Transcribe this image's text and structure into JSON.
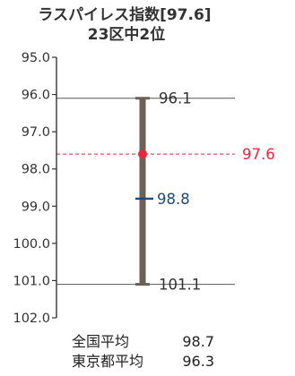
{
  "chart_data": {
    "type": "range",
    "title_line1": "ラスパイレス指数[97.6]",
    "title_line2": "23区中2位",
    "y_axis": {
      "min": 95.0,
      "max": 102.0,
      "inverted": true,
      "ticks": [
        "95.0",
        "96.0",
        "97.0",
        "98.0",
        "99.0",
        "100.0",
        "101.0",
        "102.0"
      ]
    },
    "range": {
      "max_value": 96.1,
      "max_label": "96.1",
      "min_value": 101.1,
      "min_label": "101.1"
    },
    "value": {
      "value": 97.6,
      "label": "97.6"
    },
    "average": {
      "value": 98.8,
      "label": "98.8"
    },
    "footer": [
      {
        "label": "全国平均",
        "value": "98.7"
      },
      {
        "label": "東京都平均",
        "value": "96.3"
      }
    ],
    "colors": {
      "bar": "#6b6157",
      "value_marker": "#e8263c",
      "average_marker": "#1c4a7a",
      "axis": "#333333",
      "range_guides": "#555555"
    }
  }
}
